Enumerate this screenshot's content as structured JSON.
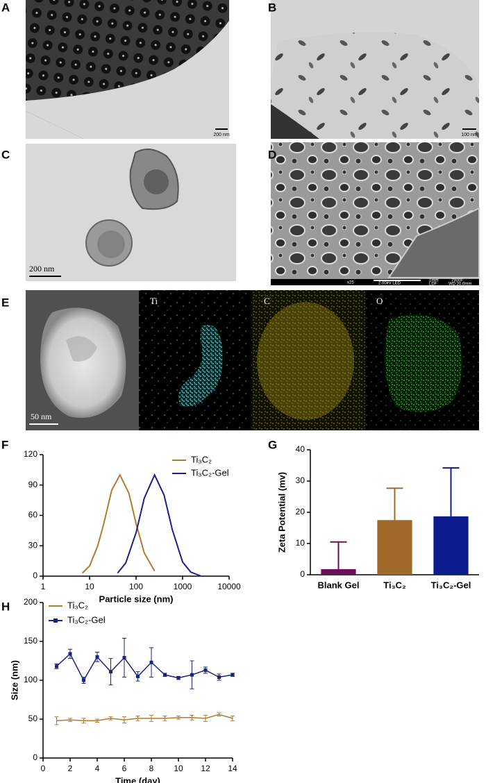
{
  "micrographs": [
    {
      "label": "A",
      "scale": "200 nm"
    },
    {
      "label": "B",
      "scale": "100 nm"
    },
    {
      "label": "C",
      "scale": "200 nm"
    },
    {
      "label": "D",
      "info": [
        "x25",
        "2.00kV LED",
        "1mm",
        "7900F",
        "LDF",
        "WD 20.0mm"
      ]
    },
    {
      "label": "E",
      "scale": "50 nm",
      "channels": [
        "Ti",
        "C",
        "O"
      ]
    }
  ],
  "chart_data": [
    {
      "type": "line",
      "panel_label": "F",
      "xlabel": "Particle size (nm)",
      "xlog": true,
      "xlim": [
        1,
        10000
      ],
      "xticks": [
        1,
        10,
        100,
        1000,
        10000
      ],
      "ylim": [
        0,
        120
      ],
      "yticks": [
        0,
        30,
        60,
        90,
        120
      ],
      "legend": "upper right",
      "series": [
        {
          "name": "Ti₃C₂",
          "color": "#b07a30",
          "x": [
            7,
            10,
            15,
            20,
            30,
            45,
            70,
            100,
            150,
            250
          ],
          "values": [
            3,
            10,
            30,
            51,
            85,
            100,
            82,
            52,
            23,
            5
          ]
        },
        {
          "name": "Ti₃C₂-Gel",
          "color": "#1a1f8c",
          "x": [
            40,
            60,
            100,
            150,
            250,
            400,
            600,
            1000,
            1500,
            2500
          ],
          "values": [
            3,
            13,
            43,
            77,
            100,
            80,
            46,
            14,
            4,
            0
          ]
        }
      ]
    },
    {
      "type": "bar",
      "panel_label": "G",
      "ylabel": "Zeta Potential (mv)",
      "categories": [
        "Blank Gel",
        "Ti₃C₂",
        "Ti₃C₂-Gel"
      ],
      "values": [
        1.8,
        17.5,
        18.7
      ],
      "errors": [
        8.7,
        10.2,
        15.5
      ],
      "colors": [
        "#6b0f5a",
        "#a0692a",
        "#0a1b8c"
      ],
      "ylim": [
        0,
        40
      ],
      "yticks": [
        0,
        10,
        20,
        30,
        40
      ]
    },
    {
      "type": "errorline",
      "panel_label": "H",
      "xlabel": "Time (day)",
      "ylabel": "Size (nm)",
      "x": [
        1,
        2,
        3,
        4,
        5,
        6,
        7,
        8,
        9,
        10,
        11,
        12,
        13,
        14
      ],
      "xlim": [
        0,
        14
      ],
      "xticks": [
        0,
        2,
        4,
        6,
        8,
        10,
        12,
        14
      ],
      "ylim": [
        0,
        200
      ],
      "yticks": [
        0,
        50,
        100,
        150,
        200
      ],
      "legend": "upper left",
      "series": [
        {
          "name": "Ti₃C₂",
          "color": "#b07a30",
          "marker": "none",
          "values": [
            48,
            49,
            48,
            48,
            51,
            49,
            51,
            51,
            51,
            52,
            52,
            51,
            56,
            51
          ],
          "errors": [
            5,
            2,
            3,
            2,
            2,
            4,
            3,
            4,
            3,
            2,
            3,
            4,
            2,
            3
          ]
        },
        {
          "name": "Ti₃C₂-Gel",
          "color": "#1a237e",
          "marker": "square",
          "values": [
            118,
            134,
            100,
            130,
            111,
            129,
            105,
            123,
            107,
            103,
            107,
            113,
            104,
            107
          ],
          "errors": [
            3,
            6,
            4,
            6,
            17,
            25,
            6,
            19,
            2,
            2,
            18,
            4,
            4,
            2
          ]
        }
      ]
    }
  ]
}
